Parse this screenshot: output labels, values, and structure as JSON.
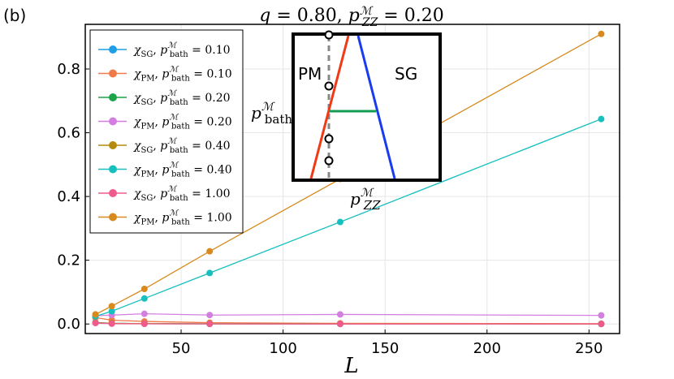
{
  "panel_label": "(b)",
  "chart_data": {
    "type": "line",
    "title": "q = 0.80, p_ZZ^M = 0.20",
    "xlabel": "L",
    "ylabel": "",
    "xlim": [
      3,
      265
    ],
    "ylim": [
      -0.03,
      0.94
    ],
    "xticks": [
      50,
      100,
      150,
      200,
      250
    ],
    "yticks": [
      0.0,
      0.2,
      0.4,
      0.6,
      0.8
    ],
    "xtick_labels": [
      "50",
      "100",
      "150",
      "200",
      "250"
    ],
    "ytick_labels": [
      "0.0",
      "0.2",
      "0.4",
      "0.6",
      "0.8"
    ],
    "grid": true,
    "legend_position": "top-left",
    "x": [
      8,
      16,
      32,
      64,
      128,
      256
    ],
    "series": [
      {
        "name": "χSG, pbath = 0.10",
        "chi": "χ",
        "sub": "SG",
        "p": "p",
        "sup": "ℳ",
        "psub": "bath",
        "value_text": "= 0.10",
        "color": "#1f9fe6",
        "values": [
          0.005,
          0.002,
          0.001,
          0.0005,
          0.0003,
          0.0001
        ]
      },
      {
        "name": "χPM, pbath = 0.10",
        "chi": "χ",
        "sub": "PM",
        "p": "p",
        "sup": "ℳ",
        "psub": "bath",
        "value_text": "= 0.10",
        "color": "#f07a4a",
        "values": [
          0.02,
          0.012,
          0.008,
          0.004,
          0.002,
          0.001
        ]
      },
      {
        "name": "χSG, pbath = 0.20",
        "chi": "χ",
        "sub": "SG",
        "p": "p",
        "sup": "ℳ",
        "psub": "bath",
        "value_text": "= 0.20",
        "color": "#1ea34a",
        "values": [
          0.004,
          0.002,
          0.001,
          0.0005,
          0.0003,
          0.0001
        ]
      },
      {
        "name": "χPM, pbath = 0.20",
        "chi": "χ",
        "sub": "PM",
        "p": "p",
        "sup": "ℳ",
        "psub": "bath",
        "value_text": "= 0.20",
        "color": "#d27fe0",
        "values": [
          0.026,
          0.028,
          0.032,
          0.028,
          0.03,
          0.027
        ]
      },
      {
        "name": "χSG, pbath = 0.40",
        "chi": "χ",
        "sub": "SG",
        "p": "p",
        "sup": "ℳ",
        "psub": "bath",
        "value_text": "= 0.40",
        "color": "#b48b0c",
        "values": [
          0.004,
          0.002,
          0.001,
          0.0005,
          0.0003,
          0.0001
        ]
      },
      {
        "name": "χPM, pbath = 0.40",
        "chi": "χ",
        "sub": "PM",
        "p": "p",
        "sup": "ℳ",
        "psub": "bath",
        "value_text": "= 0.40",
        "color": "#17bfbf",
        "values": [
          0.024,
          0.04,
          0.08,
          0.16,
          0.32,
          0.643
        ]
      },
      {
        "name": "χSG, pbath = 1.00",
        "chi": "χ",
        "sub": "SG",
        "p": "p",
        "sup": "ℳ",
        "psub": "bath",
        "value_text": "= 1.00",
        "color": "#ef5b8d",
        "values": [
          0.003,
          0.001,
          0.0005,
          0.0002,
          0.0001,
          0.0001
        ]
      },
      {
        "name": "χPM, pbath = 1.00",
        "chi": "χ",
        "sub": "PM",
        "p": "p",
        "sup": "ℳ",
        "psub": "bath",
        "value_text": "= 1.00",
        "color": "#d98a1e",
        "values": [
          0.03,
          0.056,
          0.11,
          0.228,
          0.455,
          0.91
        ]
      }
    ]
  },
  "inset": {
    "pm_label": "PM",
    "sg_label": "SG",
    "x_label": "p_ZZ^ℳ",
    "y_label": "p_bath^ℳ",
    "colors": {
      "pm_boundary": "#f03a17",
      "sg_boundary": "#1a3cf0",
      "mixed_line": "#169b53",
      "dashed_line": "#888888"
    }
  }
}
